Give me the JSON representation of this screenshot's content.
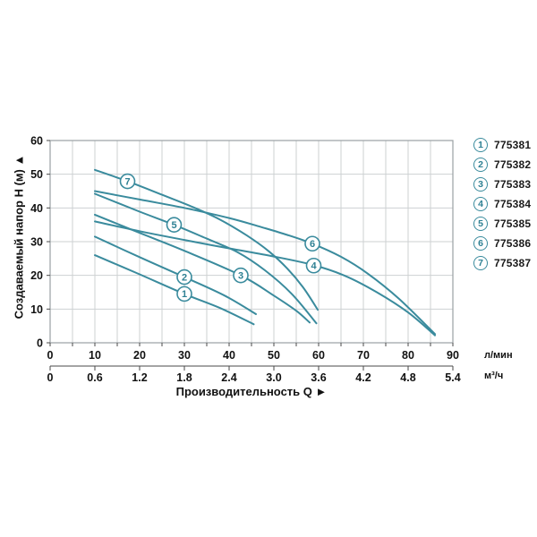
{
  "colors": {
    "curve": "#3a8b9d",
    "marker_text": "#2e8093",
    "grid": "#cdd1d2",
    "plot_border": "#9aa0a3",
    "axis": "#4a4a4a",
    "text": "#111111"
  },
  "chart_data": {
    "type": "line",
    "title": "",
    "xlabel": "Производительность Q",
    "xlabel_arrow": "►",
    "ylabel": "Создаваемый напор Н (м)",
    "ylabel_arrow": "▲",
    "xlim": [
      0,
      90
    ],
    "ylim": [
      0,
      60
    ],
    "grid": "on",
    "grid_x_step": 5,
    "grid_y_step": 10,
    "legend_position": "right",
    "y_ticks": [
      "0",
      "10",
      "20",
      "30",
      "40",
      "50",
      "60"
    ],
    "x_axis_primary": {
      "unit": "л/мин",
      "ticks": [
        "0",
        "10",
        "20",
        "30",
        "40",
        "50",
        "60",
        "70",
        "80",
        "90"
      ]
    },
    "x_axis_secondary": {
      "unit": "м³/ч",
      "ticks": [
        "0",
        "0.6",
        "1.2",
        "1.8",
        "2.4",
        "3.0",
        "3.6",
        "4.2",
        "4.8",
        "5.4"
      ]
    },
    "series": [
      {
        "name": "1",
        "code": "775381",
        "label_at": [
          30,
          14.5
        ],
        "points": [
          [
            10,
            26
          ],
          [
            20,
            20.3
          ],
          [
            30,
            14.5
          ],
          [
            38,
            10.3
          ],
          [
            45.5,
            5.5
          ]
        ]
      },
      {
        "name": "2",
        "code": "775382",
        "label_at": [
          30,
          19.5
        ],
        "points": [
          [
            10,
            31.5
          ],
          [
            20,
            25.4
          ],
          [
            30,
            19.5
          ],
          [
            39,
            14
          ],
          [
            46,
            8.5
          ]
        ]
      },
      {
        "name": "3",
        "code": "775383",
        "label_at": [
          42.6,
          20
        ],
        "points": [
          [
            10,
            38
          ],
          [
            20,
            32.6
          ],
          [
            30,
            27.3
          ],
          [
            42.6,
            20
          ],
          [
            50,
            14
          ],
          [
            55,
            9.5
          ],
          [
            58,
            6
          ]
        ]
      },
      {
        "name": "4",
        "code": "775384",
        "label_at": [
          58.9,
          22.9
        ],
        "points": [
          [
            10,
            36
          ],
          [
            20,
            33.1
          ],
          [
            30,
            30.5
          ],
          [
            40,
            28
          ],
          [
            50,
            25.6
          ],
          [
            59,
            23
          ],
          [
            66,
            19.8
          ],
          [
            73,
            15
          ],
          [
            80,
            9
          ],
          [
            86,
            2.2
          ]
        ]
      },
      {
        "name": "5",
        "code": "775385",
        "label_at": [
          27.7,
          35
        ],
        "points": [
          [
            10,
            44.2
          ],
          [
            20,
            38.9
          ],
          [
            27.7,
            35
          ],
          [
            35,
            30.9
          ],
          [
            42,
            26.8
          ],
          [
            48,
            21.5
          ],
          [
            54,
            14.5
          ],
          [
            59.5,
            5.8
          ]
        ]
      },
      {
        "name": "6",
        "code": "775386",
        "label_at": [
          58.6,
          29.4
        ],
        "points": [
          [
            10,
            45
          ],
          [
            20,
            42.5
          ],
          [
            30,
            40
          ],
          [
            40,
            37
          ],
          [
            47,
            34.4
          ],
          [
            53,
            32
          ],
          [
            58.6,
            29.4
          ],
          [
            65,
            25.5
          ],
          [
            71,
            20.5
          ],
          [
            78,
            13
          ],
          [
            86,
            2.6
          ]
        ]
      },
      {
        "name": "7",
        "code": "775387",
        "label_at": [
          17.3,
          47.9
        ],
        "points": [
          [
            10,
            51.3
          ],
          [
            17.3,
            47.9
          ],
          [
            25,
            43.9
          ],
          [
            32,
            40.2
          ],
          [
            38,
            36.5
          ],
          [
            44,
            31.8
          ],
          [
            49,
            27
          ],
          [
            53,
            22
          ],
          [
            56.5,
            16.5
          ],
          [
            59.8,
            9.8
          ]
        ]
      }
    ]
  }
}
